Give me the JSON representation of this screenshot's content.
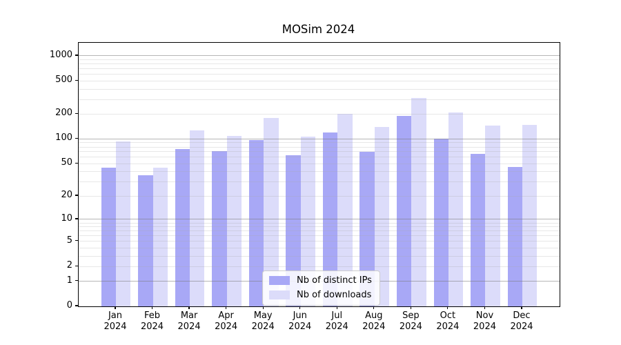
{
  "chart_data": {
    "type": "bar",
    "title": "MOSim 2024",
    "categories": [
      "Jan",
      "Feb",
      "Mar",
      "Apr",
      "May",
      "Jun",
      "Jul",
      "Aug",
      "Sep",
      "Oct",
      "Nov",
      "Dec"
    ],
    "category_year": "2024",
    "series": [
      {
        "name": "Nb of distinct IPs",
        "color": "#a8a8f6",
        "values": [
          45,
          36,
          75,
          72,
          97,
          63,
          120,
          70,
          190,
          101,
          66,
          46
        ]
      },
      {
        "name": "Nb of downloads",
        "color": "#dcdcfa",
        "values": [
          93,
          45,
          127,
          110,
          178,
          107,
          201,
          140,
          310,
          210,
          145,
          148
        ]
      }
    ],
    "xlabel": "",
    "ylabel": "",
    "yscale": "log1p",
    "ylim": [
      0,
      1435
    ],
    "ytick_values": [
      0,
      1,
      2,
      5,
      10,
      20,
      50,
      100,
      200,
      500,
      1000
    ],
    "ytick_labels": [
      "0",
      "1",
      "2",
      "5",
      "10",
      "20",
      "50",
      "100",
      "200",
      "500",
      "1000"
    ],
    "major_gridline_values": [
      1,
      10,
      100,
      1000
    ],
    "minor_gridline_values": [
      2,
      3,
      4,
      5,
      6,
      7,
      8,
      9,
      20,
      30,
      40,
      50,
      60,
      70,
      80,
      90,
      200,
      300,
      400,
      500,
      600,
      700,
      800,
      900
    ],
    "grid": true,
    "legend_position": "lower center",
    "colors": {
      "bar_distinct_ips": "#a8a8f6",
      "bar_downloads": "#dcdcfa",
      "major_gridline": "#bcbcbc",
      "minor_gridline": "#ececec",
      "axis": "#000000",
      "background": "#ffffff"
    }
  }
}
